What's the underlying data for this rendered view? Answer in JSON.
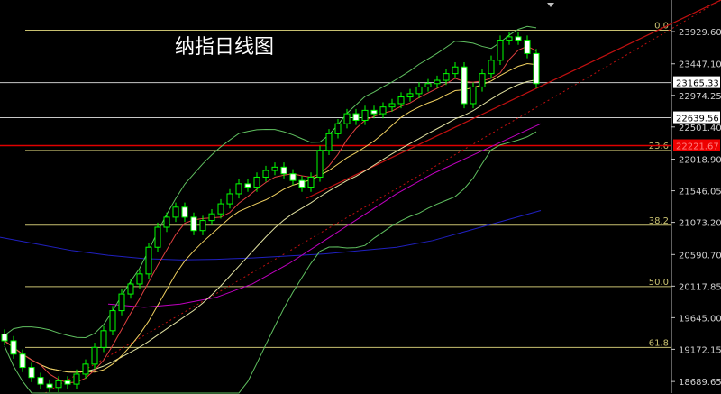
{
  "chart_data": {
    "type": "candlestick",
    "title": "纳指日线图",
    "ylim": [
      18400,
      24170
    ],
    "y_ticks": [
      "23929.60",
      "23447.10",
      "22974.25",
      "22501.40",
      "22018.90",
      "21546.05",
      "21073.20",
      "20590.70",
      "20117.85",
      "19645.00",
      "19172.15",
      "18689.65"
    ],
    "price_labels": [
      {
        "text": "23165.33",
        "value": 23165.33,
        "style": "white"
      },
      {
        "text": "22639.56",
        "value": 22639.56,
        "style": "white"
      },
      {
        "text": "22221.67",
        "value": 22221.67,
        "style": "red"
      }
    ],
    "fib_levels": [
      {
        "label": "0.0",
        "value": 23950
      },
      {
        "label": "23.6",
        "value": 22150
      },
      {
        "label": "38.2",
        "value": 21030
      },
      {
        "label": "50.0",
        "value": 20110
      },
      {
        "label": "61.8",
        "value": 19200
      }
    ],
    "closes": [
      19300,
      19100,
      18900,
      18750,
      18650,
      18600,
      18700,
      18650,
      18800,
      18950,
      19200,
      19450,
      19750,
      20000,
      20150,
      20300,
      20700,
      21000,
      21150,
      21300,
      21150,
      20950,
      21100,
      21200,
      21350,
      21500,
      21650,
      21600,
      21750,
      21850,
      21900,
      21800,
      21700,
      21600,
      21750,
      22150,
      22400,
      22550,
      22700,
      22600,
      22750,
      22700,
      22800,
      22850,
      22950,
      23000,
      23100,
      23150,
      23200,
      23300,
      23400,
      22850,
      23100,
      23300,
      23500,
      23800,
      23850,
      23800,
      23600,
      23150
    ],
    "long_ma_blue": [
      20850,
      20750,
      20650,
      20580,
      20530,
      20510,
      20520,
      20540,
      20570,
      20600,
      20650,
      20700,
      20800,
      20950,
      21100,
      21250
    ],
    "long_ma_purple": [
      null,
      null,
      null,
      19850,
      19800,
      19850,
      19950,
      20150,
      20450,
      20800,
      21150,
      21500,
      21800,
      22050,
      22300,
      22550
    ],
    "colors": {
      "up": "#00ff00",
      "down": "#00ff00",
      "up_fill": "#ffffff",
      "fib": "#c8c070",
      "red": "#ff0000",
      "blue": "#2020c0",
      "purple": "#c000c0",
      "boll": "#60c060"
    }
  }
}
